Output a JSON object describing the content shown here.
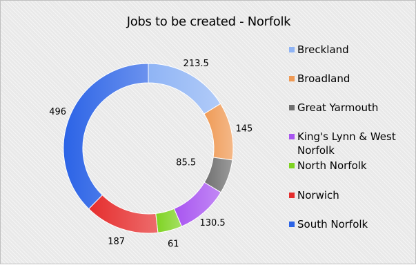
{
  "chart_data": {
    "type": "pie",
    "variant": "donut",
    "title": "Jobs to be created - Norfolk",
    "categories": [
      "Breckland",
      "Broadland",
      "Great Yarmouth",
      "King's Lynn & West Norfolk",
      "North Norfolk",
      "Norwich",
      "South Norfolk"
    ],
    "values": [
      213.5,
      145,
      85.5,
      130.5,
      61,
      187,
      496
    ],
    "value_labels": [
      "213.5",
      "145",
      "85.5",
      "130.5",
      "61",
      "187",
      "496"
    ],
    "colors": [
      "#8fb4f5",
      "#ef9a55",
      "#707070",
      "#a855f0",
      "#7ed321",
      "#e52d2d",
      "#2b63e6"
    ],
    "legend": {
      "position": "right",
      "labels": [
        "Breckland",
        "Broadland",
        "Great Yarmouth",
        "King's Lynn & West Norfolk",
        "North Norfolk",
        "Norwich",
        "South Norfolk"
      ]
    },
    "grid": false
  }
}
